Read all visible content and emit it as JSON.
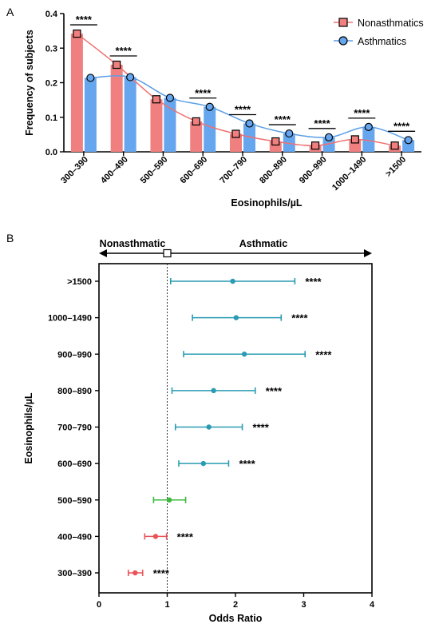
{
  "chart_data": [
    {
      "panel": "A",
      "type": "bar",
      "xlabel": "Eosinophils/µL",
      "ylabel": "Frequency of subjects",
      "ylim": [
        0,
        0.4
      ],
      "yticks": [
        "0.0",
        "0.1",
        "0.2",
        "0.3",
        "0.4"
      ],
      "categories": [
        "300–390",
        "400–490",
        "500–590",
        "600–690",
        "700–790",
        "800–890",
        "900–990",
        "1000–1490",
        ">1500"
      ],
      "series": [
        {
          "name": "Nonasthmatics",
          "color": "#f08080",
          "line_color": "#f07070",
          "marker": "square",
          "values": [
            0.342,
            0.252,
            0.152,
            0.088,
            0.052,
            0.03,
            0.018,
            0.036,
            0.018
          ]
        },
        {
          "name": "Asthmatics",
          "color": "#66a6ee",
          "line_color": "#5a9ee8",
          "marker": "circle",
          "values": [
            0.214,
            0.216,
            0.156,
            0.13,
            0.082,
            0.053,
            0.042,
            0.072,
            0.034
          ]
        }
      ],
      "significance": [
        "****",
        "****",
        "",
        "****",
        "****",
        "****",
        "****",
        "****",
        "****"
      ],
      "grid": false,
      "legend_placement": "top-right"
    },
    {
      "panel": "B",
      "type": "forest",
      "xlabel": "Odds Ratio",
      "ylabel": "Eosinophils/µL",
      "xlim": [
        0,
        4
      ],
      "xticks": [
        "0",
        "1",
        "2",
        "3",
        "4"
      ],
      "reference_line": 1,
      "direction_labels": {
        "left": "Nonasthmatic",
        "right": "Asthmatic"
      },
      "rows": [
        {
          "label": ">1500",
          "or": 1.96,
          "lo": 1.05,
          "hi": 2.87,
          "color": "#2a9bb3",
          "sig": "****"
        },
        {
          "label": "1000–1490",
          "or": 2.01,
          "lo": 1.37,
          "hi": 2.67,
          "color": "#2a9bb3",
          "sig": "****"
        },
        {
          "label": "900–990",
          "or": 2.13,
          "lo": 1.24,
          "hi": 3.02,
          "color": "#2a9bb3",
          "sig": "****"
        },
        {
          "label": "800–890",
          "or": 1.68,
          "lo": 1.07,
          "hi": 2.29,
          "color": "#2a9bb3",
          "sig": "****"
        },
        {
          "label": "700–790",
          "or": 1.61,
          "lo": 1.12,
          "hi": 2.1,
          "color": "#2a9bb3",
          "sig": "****"
        },
        {
          "label": "600–690",
          "or": 1.53,
          "lo": 1.17,
          "hi": 1.9,
          "color": "#2a9bb3",
          "sig": "****"
        },
        {
          "label": "500–590",
          "or": 1.03,
          "lo": 0.8,
          "hi": 1.27,
          "color": "#3cb83c",
          "sig": ""
        },
        {
          "label": "400–490",
          "or": 0.83,
          "lo": 0.67,
          "hi": 0.99,
          "color": "#e8545a",
          "sig": "****"
        },
        {
          "label": "300–390",
          "or": 0.53,
          "lo": 0.43,
          "hi": 0.64,
          "color": "#e8545a",
          "sig": "****"
        }
      ]
    }
  ],
  "panel_labels": [
    "A",
    "B"
  ]
}
